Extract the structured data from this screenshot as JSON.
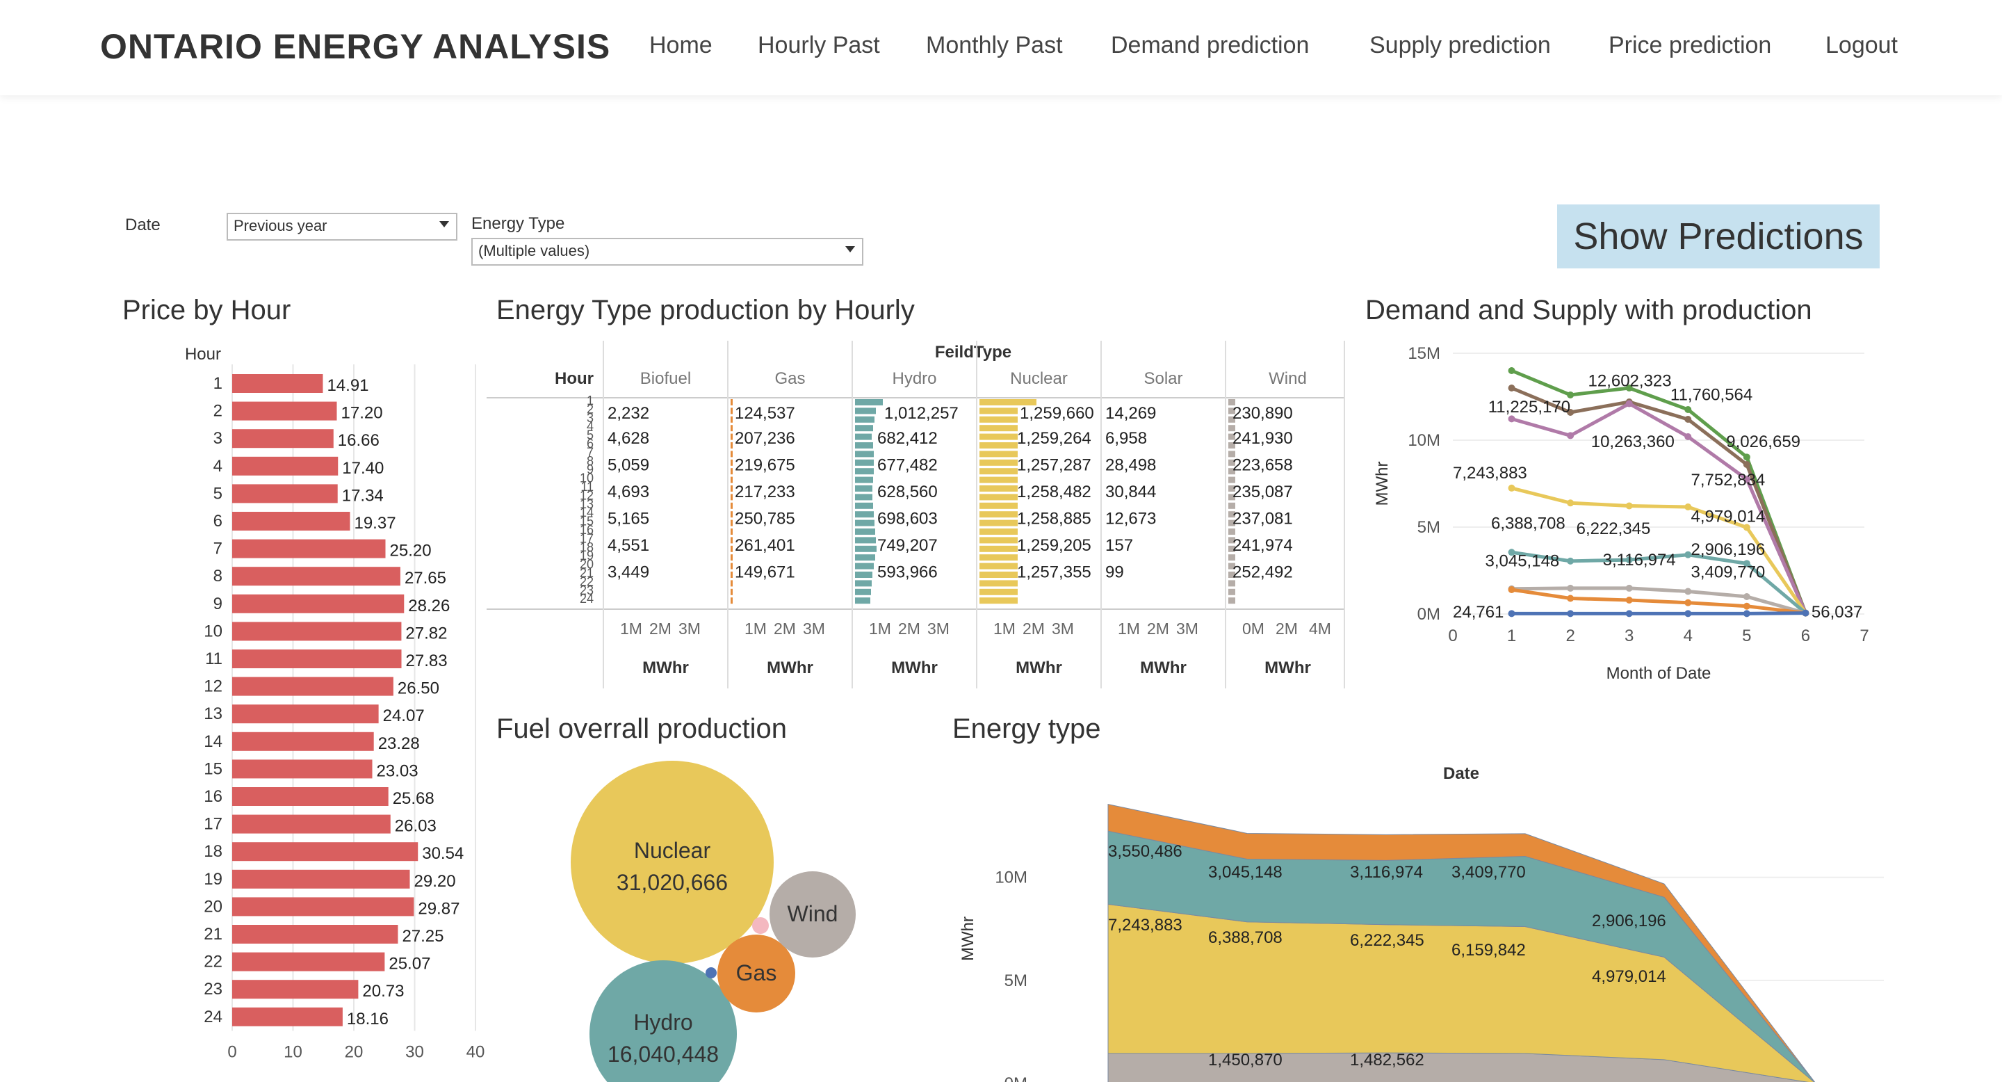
{
  "nav": {
    "brand": "ONTARIO ENERGY ANALYSIS",
    "items": [
      "Home",
      "Hourly Past",
      "Monthly Past",
      "Demand prediction",
      "Supply prediction",
      "Price prediction",
      "Logout"
    ]
  },
  "filters": {
    "date_label": "Date",
    "date_value": "Previous year",
    "energy_label": "Energy Type",
    "energy_value": "(Multiple values)"
  },
  "show_predictions": "Show Predictions",
  "titles": {
    "price_by_hour": "Price by Hour",
    "energy_type_hourly": "Energy Type production by Hourly",
    "demand_supply": "Demand and Supply with production",
    "fuel_overall": "Fuel overrall production",
    "energy_type": "Energy type"
  },
  "colors": {
    "price_bar": "#d95f5f",
    "biofuel": "#8f8a8a",
    "gas": "#e58b3a",
    "hydro": "#6fa8a6",
    "nuclear": "#e8c85a",
    "solar": "#f4b8c0",
    "wind": "#b5ada8"
  },
  "chart_data": [
    {
      "type": "bar",
      "title": "Price by Hour",
      "xlabel": "",
      "ylabel": "Hour",
      "categories": [
        "1",
        "2",
        "3",
        "4",
        "5",
        "6",
        "7",
        "8",
        "9",
        "10",
        "11",
        "12",
        "13",
        "14",
        "15",
        "16",
        "17",
        "18",
        "19",
        "20",
        "21",
        "22",
        "23",
        "24"
      ],
      "values": [
        14.91,
        17.2,
        16.66,
        17.4,
        17.34,
        19.37,
        25.2,
        27.65,
        28.26,
        27.82,
        27.83,
        26.5,
        24.07,
        23.28,
        23.03,
        25.68,
        26.03,
        30.54,
        29.2,
        29.87,
        27.25,
        25.07,
        20.73,
        18.16
      ],
      "value_labels": [
        "14.91",
        "17.20",
        "16.66",
        "17.40",
        "17.34",
        "19.37",
        "25.20",
        "27.65",
        "28.26",
        "27.82",
        "27.83",
        "26.50",
        "24.07",
        "23.28",
        "23.03",
        "25.68",
        "26.03",
        "30.54",
        "29.20",
        "29.87",
        "27.25",
        "25.07",
        "20.73",
        "18.16"
      ],
      "xlim": [
        0,
        40
      ],
      "xticks": [
        "0",
        "10",
        "20",
        "30",
        "40"
      ]
    },
    {
      "type": "bar",
      "title": "Energy Type production by Hourly",
      "header": "FeildType",
      "row_header": "Hour",
      "hours": [
        "1",
        "2",
        "3",
        "4",
        "5",
        "6",
        "7",
        "8",
        "9",
        "10",
        "11",
        "12",
        "13",
        "14",
        "15",
        "16",
        "17",
        "18",
        "19",
        "20",
        "21",
        "22",
        "23",
        "24"
      ],
      "columns": [
        {
          "name": "Biofuel",
          "labels": [
            "2,232",
            "4,628",
            "5,059",
            "4,693",
            "5,165",
            "4,551",
            "3,449"
          ],
          "xticks": [
            "1M",
            "2M",
            "3M"
          ],
          "unit": "MWhr"
        },
        {
          "name": "Gas",
          "labels": [
            "124,537",
            "207,236",
            "219,675",
            "217,233",
            "250,785",
            "261,401",
            "149,671"
          ],
          "xticks": [
            "1M",
            "2M",
            "3M"
          ],
          "unit": "MWhr"
        },
        {
          "name": "Hydro",
          "labels": [
            "1,012,257",
            "682,412",
            "677,482",
            "628,560",
            "698,603",
            "749,207",
            "593,966"
          ],
          "xticks": [
            "1M",
            "2M",
            "3M"
          ],
          "unit": "MWhr"
        },
        {
          "name": "Nuclear",
          "labels": [
            "1,259,660",
            "1,259,264",
            "1,257,287",
            "1,258,482",
            "1,258,885",
            "1,259,205",
            "1,257,355"
          ],
          "xticks": [
            "1M",
            "2M",
            "3M"
          ],
          "unit": "MWhr"
        },
        {
          "name": "Solar",
          "labels": [
            "14,269",
            "6,958",
            "28,498",
            "30,844",
            "12,673",
            "157",
            "99"
          ],
          "xticks": [
            "1M",
            "2M",
            "3M"
          ],
          "unit": "MWhr"
        },
        {
          "name": "Wind",
          "labels": [
            "230,890",
            "241,930",
            "223,658",
            "235,087",
            "237,081",
            "241,974",
            "252,492"
          ],
          "xticks": [
            "0M",
            "2M",
            "4M"
          ],
          "unit": "MWhr"
        }
      ]
    },
    {
      "type": "line",
      "title": "Demand and Supply with production",
      "xlabel": "Month of Date",
      "ylabel": "MWhr",
      "x": [
        1,
        2,
        3,
        4,
        5,
        6
      ],
      "xlim": [
        0,
        7
      ],
      "ylim": [
        0,
        15000000
      ],
      "yticks": [
        "0M",
        "5M",
        "10M",
        "15M"
      ],
      "xticks": [
        "0",
        "1",
        "2",
        "3",
        "4",
        "5",
        "6",
        "7"
      ],
      "series": [
        {
          "values": [
            14000000,
            12602323,
            13000000,
            11760564,
            9026659,
            56037
          ],
          "color": "#5f9e4c"
        },
        {
          "values": [
            13000000,
            11600000,
            12200000,
            11200000,
            8600000,
            56037
          ],
          "color": "#8b6f5a"
        },
        {
          "values": [
            11225170,
            10263360,
            12100000,
            10200000,
            7752834,
            56037
          ],
          "color": "#b07aa8"
        },
        {
          "values": [
            7243883,
            6388708,
            6222345,
            6159842,
            4979014,
            56037
          ],
          "color": "#e8c85a"
        },
        {
          "values": [
            3550486,
            3045148,
            3116974,
            3409770,
            2906196,
            56037
          ],
          "color": "#6fa8a6"
        },
        {
          "values": [
            1450870,
            1482562,
            1482562,
            1300000,
            1000000,
            56037
          ],
          "color": "#b5ada8"
        },
        {
          "values": [
            1400000,
            900000,
            800000,
            650000,
            450000,
            56037
          ],
          "color": "#e58b3a"
        },
        {
          "values": [
            24761,
            24761,
            24761,
            24761,
            24761,
            56037
          ],
          "color": "#4e73b5"
        }
      ],
      "annotations": [
        "12,602,323",
        "11,760,564",
        "11,225,170",
        "9,026,659",
        "10,263,360",
        "7,243,883",
        "7,752,834",
        "4,979,014",
        "6,388,708",
        "6,222,345",
        "2,906,196",
        "3,045,148",
        "3,116,974",
        "3,409,770",
        "24,761",
        "56,037"
      ]
    },
    {
      "type": "bubble",
      "title": "Fuel overrall production",
      "items": [
        {
          "name": "Nuclear",
          "value": "31,020,666"
        },
        {
          "name": "Hydro",
          "value": "16,040,448"
        },
        {
          "name": "Gas",
          "value": ""
        },
        {
          "name": "Wind",
          "value": ""
        }
      ]
    },
    {
      "type": "area",
      "title": "Energy type",
      "header": "Date",
      "ylabel": "MWhr",
      "yticks": [
        "0M",
        "5M",
        "10M"
      ],
      "ylim": [
        0,
        13500000
      ],
      "x": [
        1,
        2,
        3,
        4,
        5,
        6
      ],
      "series": [
        {
          "name": "Wind",
          "color": "#b5ada8",
          "values": [
            1450870,
            1450870,
            1482562,
            1450000,
            1150000,
            0
          ]
        },
        {
          "name": "Nuclear",
          "color": "#e8c85a",
          "values": [
            7243883,
            6388708,
            6222345,
            6159842,
            4979014,
            0
          ]
        },
        {
          "name": "Hydro",
          "color": "#6fa8a6",
          "values": [
            3550486,
            3045148,
            3116974,
            3409770,
            2906196,
            0
          ]
        },
        {
          "name": "Gas",
          "color": "#e58b3a",
          "values": [
            1300000,
            1250000,
            1250000,
            1100000,
            650000,
            0
          ]
        }
      ],
      "labels": [
        "3,550,486",
        "3,045,148",
        "3,116,974",
        "3,409,770",
        "2,906,196",
        "7,243,883",
        "6,388,708",
        "6,222,345",
        "6,159,842",
        "4,979,014",
        "1,450,870",
        "1,482,562"
      ]
    }
  ]
}
